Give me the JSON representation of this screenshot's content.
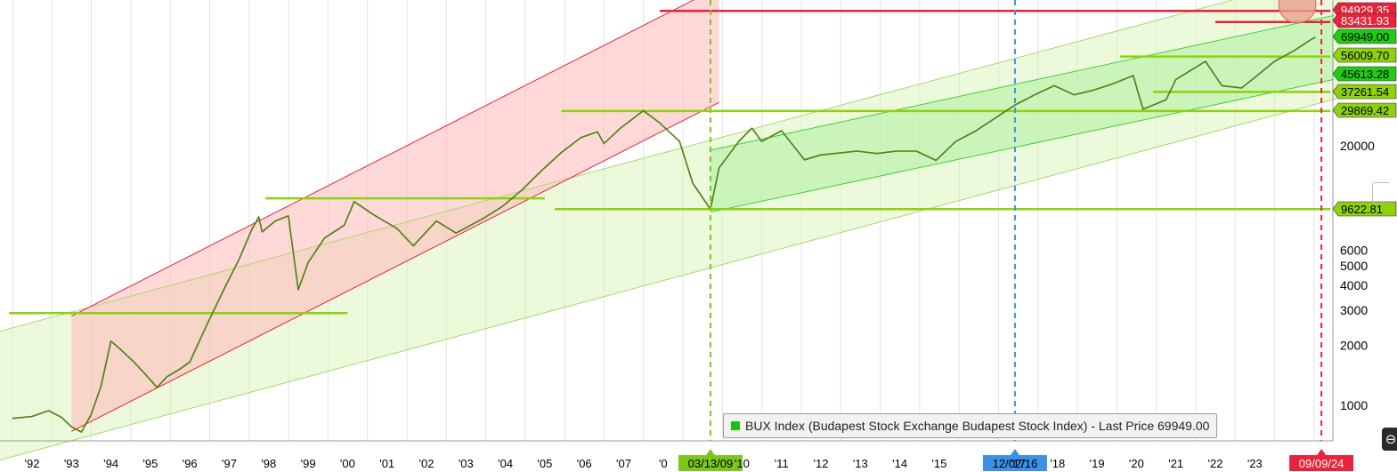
{
  "chart_data": {
    "type": "line",
    "y_scale": "log",
    "grid": true,
    "legend": {
      "position": "bottom-right",
      "text": "BUX Index (Budapest Stock Exchange Budapest Stock Index) - Last Price 69949.00"
    },
    "x_tick_labels": [
      "'92",
      "'93",
      "'94",
      "'95",
      "'96",
      "'97",
      "'98",
      "'99",
      "'00",
      "'01",
      "'02",
      "'03",
      "'04",
      "'05",
      "'06",
      "'07",
      "'0",
      "'10",
      "'11",
      "'12",
      "'13",
      "'14",
      "'15",
      "'17",
      "'18",
      "'19",
      "'20",
      "'21",
      "'22",
      "'23"
    ],
    "y_tick_labels": [
      "20000",
      "6000",
      "5000",
      "4000",
      "3000",
      "2000",
      "1000"
    ],
    "series": [
      {
        "name": "BUX Index",
        "color": "#16a80e",
        "points": [
          [
            "1991-07-01",
            860
          ],
          [
            "1992-01-01",
            880
          ],
          [
            "1992-06-01",
            940
          ],
          [
            "1992-10-01",
            870
          ],
          [
            "1993-01-01",
            780
          ],
          [
            "1993-04-01",
            735
          ],
          [
            "1993-07-01",
            900
          ],
          [
            "1993-10-01",
            1250
          ],
          [
            "1994-01-01",
            2100
          ],
          [
            "1994-04-01",
            1900
          ],
          [
            "1994-08-01",
            1650
          ],
          [
            "1994-12-01",
            1400
          ],
          [
            "1995-03-01",
            1230
          ],
          [
            "1995-06-01",
            1390
          ],
          [
            "1995-10-01",
            1520
          ],
          [
            "1996-01-01",
            1650
          ],
          [
            "1996-06-01",
            2500
          ],
          [
            "1996-12-01",
            4000
          ],
          [
            "1997-04-01",
            5400
          ],
          [
            "1997-08-01",
            7700
          ],
          [
            "1997-10-01",
            8800
          ],
          [
            "1997-11-01",
            7400
          ],
          [
            "1998-03-01",
            8400
          ],
          [
            "1998-07-01",
            8900
          ],
          [
            "1998-10-01",
            3800
          ],
          [
            "1999-01-01",
            5200
          ],
          [
            "1999-06-01",
            6900
          ],
          [
            "1999-12-01",
            8000
          ],
          [
            "2000-03-01",
            10500
          ],
          [
            "2000-09-01",
            9000
          ],
          [
            "2001-04-01",
            7700
          ],
          [
            "2001-09-01",
            6300
          ],
          [
            "2002-04-01",
            8400
          ],
          [
            "2002-10-01",
            7300
          ],
          [
            "2003-06-01",
            8600
          ],
          [
            "2003-12-01",
            9900
          ],
          [
            "2004-06-01",
            12000
          ],
          [
            "2004-12-01",
            15000
          ],
          [
            "2005-06-01",
            18500
          ],
          [
            "2005-12-01",
            22000
          ],
          [
            "2006-05-01",
            23500
          ],
          [
            "2006-07-01",
            20500
          ],
          [
            "2006-12-01",
            24500
          ],
          [
            "2007-07-01",
            30000
          ],
          [
            "2007-12-01",
            26000
          ],
          [
            "2008-06-01",
            21000
          ],
          [
            "2008-10-01",
            13000
          ],
          [
            "2009-03-13",
            9622
          ],
          [
            "2009-06-01",
            15500
          ],
          [
            "2009-12-01",
            21000
          ],
          [
            "2010-04-01",
            24500
          ],
          [
            "2010-07-01",
            21000
          ],
          [
            "2011-01-01",
            23800
          ],
          [
            "2011-08-01",
            17000
          ],
          [
            "2012-01-01",
            18000
          ],
          [
            "2012-12-01",
            18800
          ],
          [
            "2013-06-01",
            18300
          ],
          [
            "2013-12-01",
            18800
          ],
          [
            "2014-06-01",
            18800
          ],
          [
            "2014-12-01",
            16900
          ],
          [
            "2015-06-01",
            21000
          ],
          [
            "2015-12-01",
            23700
          ],
          [
            "2016-12-02",
            32000
          ],
          [
            "2017-06-01",
            36000
          ],
          [
            "2017-12-01",
            40000
          ],
          [
            "2018-06-01",
            36000
          ],
          [
            "2018-12-01",
            38000
          ],
          [
            "2019-06-01",
            41000
          ],
          [
            "2019-12-01",
            45000
          ],
          [
            "2020-03-01",
            30500
          ],
          [
            "2020-10-01",
            34000
          ],
          [
            "2021-01-01",
            43000
          ],
          [
            "2021-10-01",
            53000
          ],
          [
            "2022-03-01",
            40000
          ],
          [
            "2022-09-01",
            39000
          ],
          [
            "2023-01-01",
            44000
          ],
          [
            "2023-07-01",
            53000
          ],
          [
            "2024-01-01",
            60000
          ],
          [
            "2024-06-01",
            68000
          ],
          [
            "2024-07-15",
            69949
          ]
        ]
      }
    ],
    "price_levels": [
      {
        "label": "94929.35",
        "value": 94929.35,
        "color": "#e8233a",
        "text_color": "#ffffff"
      },
      {
        "label": "83431.93",
        "value": 83431.93,
        "color": "#e8233a",
        "text_color": "#ffffff"
      },
      {
        "label": "69949.00",
        "value": 69949.0,
        "color": "#1fcc12",
        "text_color": "#000000"
      },
      {
        "label": "56009.70",
        "value": 56009.7,
        "color": "#8ed10c",
        "text_color": "#000000"
      },
      {
        "label": "45613.28",
        "value": 45613.28,
        "color": "#1fcc12",
        "text_color": "#000000"
      },
      {
        "label": "37261.54",
        "value": 37261.54,
        "color": "#8ed10c",
        "text_color": "#000000"
      },
      {
        "label": "29869.42",
        "value": 29869.42,
        "color": "#8ed10c",
        "text_color": "#000000"
      },
      {
        "label": "9622.81",
        "value": 9622.81,
        "color": "#8ed10c",
        "text_color": "#000000"
      }
    ],
    "date_markers": [
      {
        "label": "03/13/09",
        "date": "2009-03-13",
        "color": "#7cc61e",
        "text_color": "#000000",
        "style": "dashed"
      },
      {
        "label": "12/02/16",
        "date": "2016-12-02",
        "color": "#3b91e8",
        "text_color": "#000000",
        "style": "dashed"
      },
      {
        "label": "09/09/24",
        "date": "2024-09-09",
        "color": "#e8233a",
        "text_color": "#ffffff",
        "style": "dashed"
      }
    ]
  }
}
